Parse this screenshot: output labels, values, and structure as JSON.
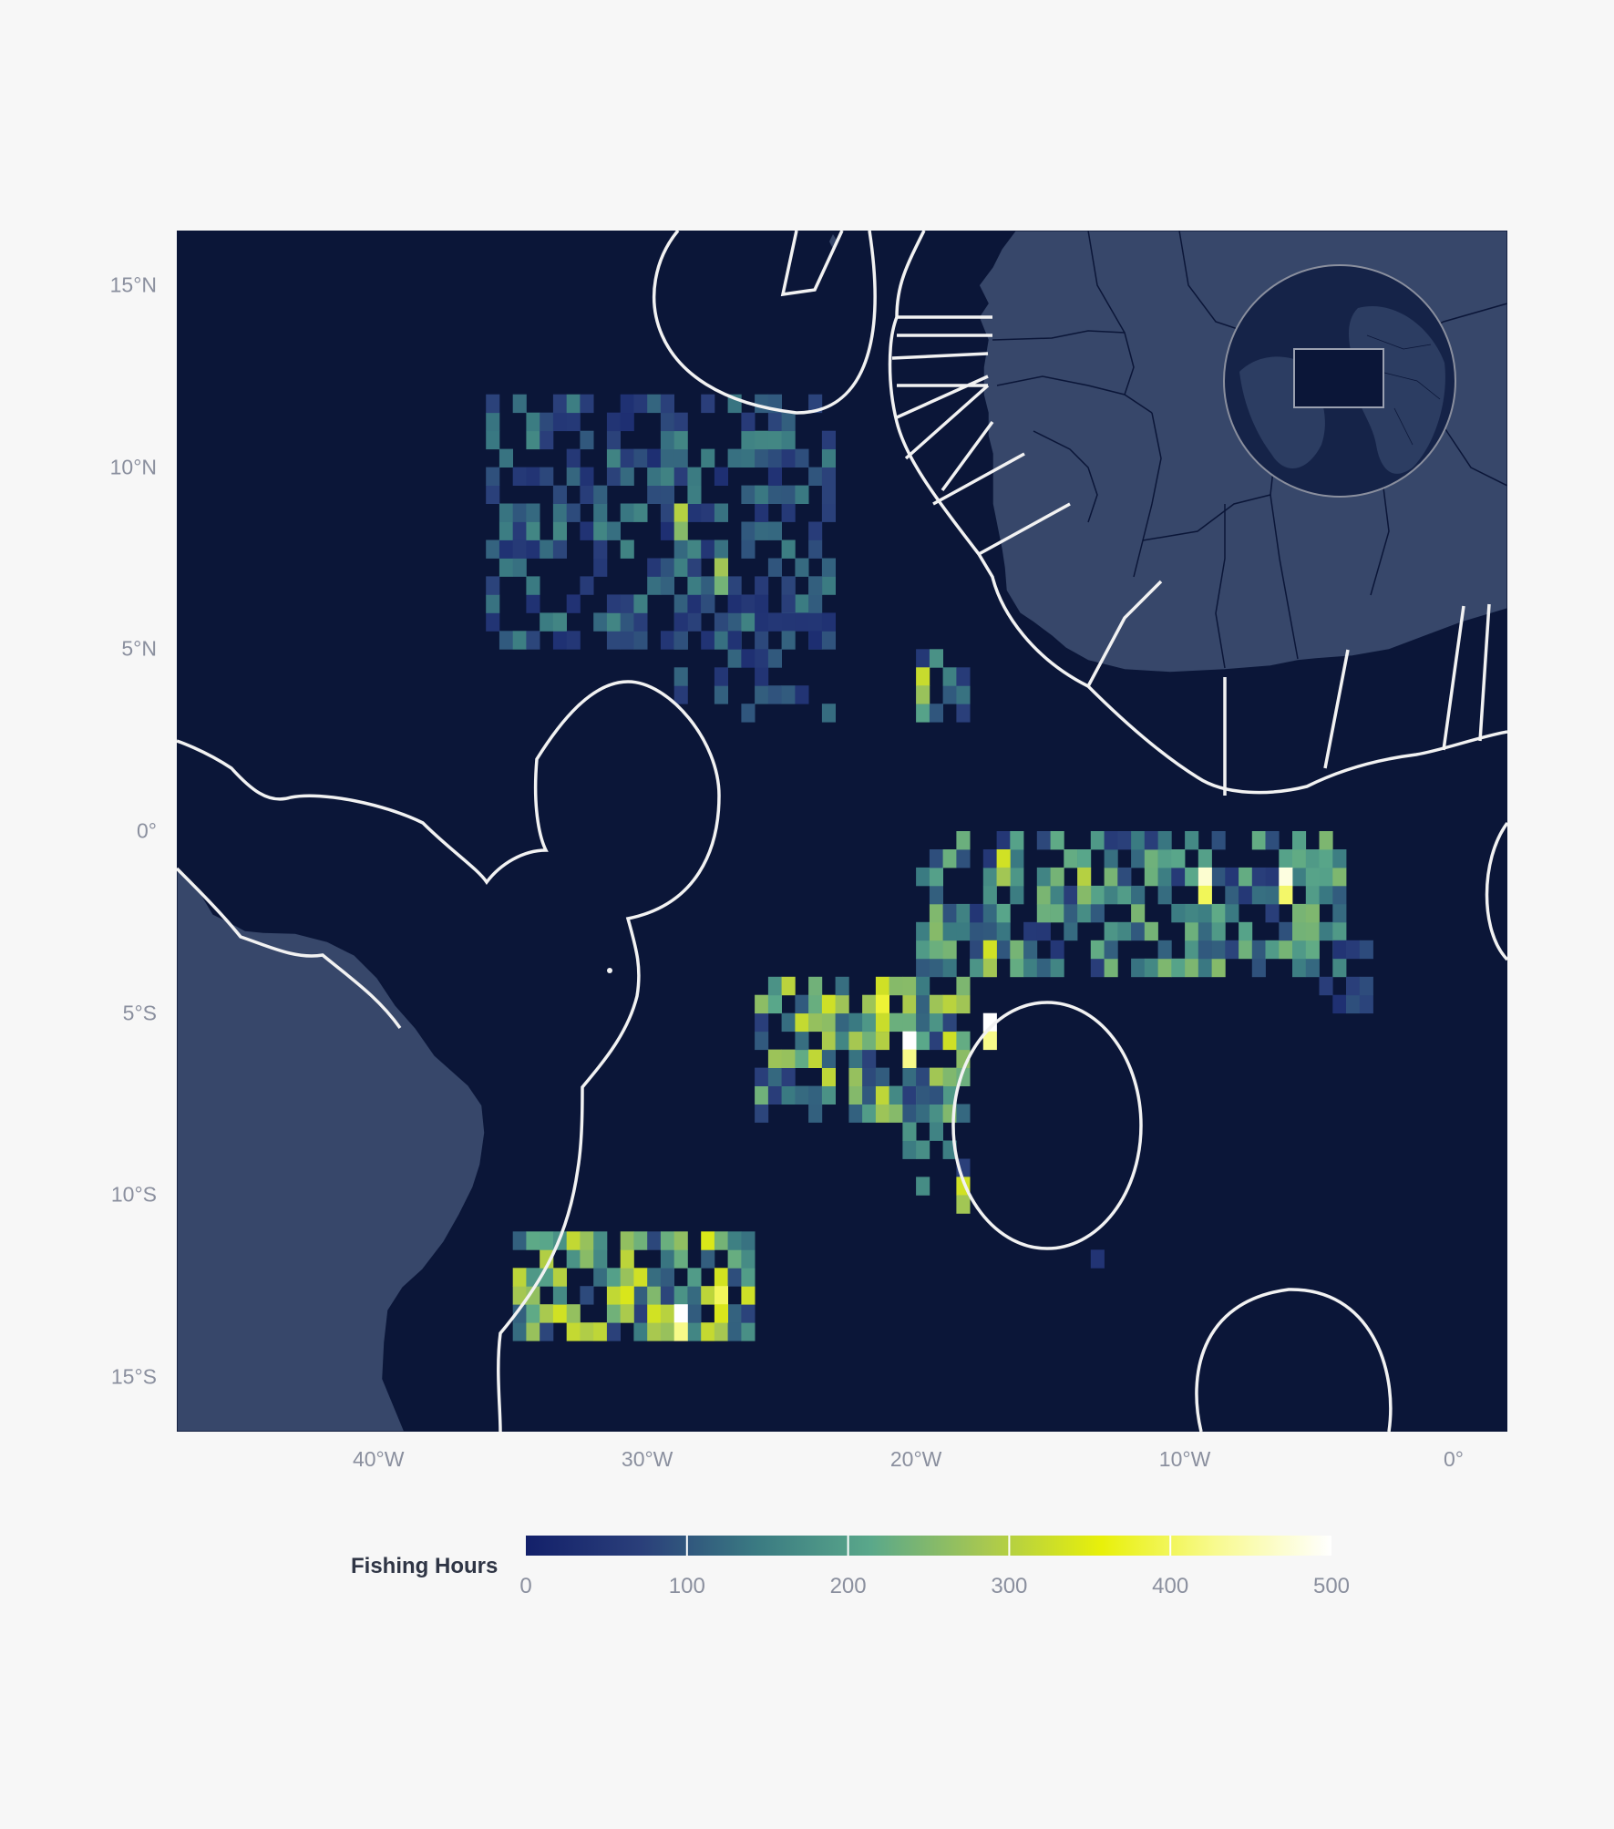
{
  "map": {
    "extent": {
      "lon_min": -47.5,
      "lon_max": 2,
      "lat_min": -16.5,
      "lat_max": 16.5
    },
    "colors": {
      "ocean": "#0b1638",
      "land": "#37476a",
      "borders": "#0b1638",
      "eez_lines": "#f2f2f2",
      "background": "#f7f7f7"
    },
    "lat_ticks": [
      {
        "value": 15,
        "label": "15°N"
      },
      {
        "value": 10,
        "label": "10°N"
      },
      {
        "value": 5,
        "label": "5°N"
      },
      {
        "value": 0,
        "label": "0°"
      },
      {
        "value": -5,
        "label": "5°S"
      },
      {
        "value": -10,
        "label": "10°S"
      },
      {
        "value": -15,
        "label": "15°S"
      }
    ],
    "lon_ticks": [
      {
        "value": -40,
        "label": "40°W"
      },
      {
        "value": -30,
        "label": "30°W"
      },
      {
        "value": -20,
        "label": "20°W"
      },
      {
        "value": -10,
        "label": "10°W"
      },
      {
        "value": 0,
        "label": "0°"
      }
    ],
    "inset": {
      "icon": "globe-locator",
      "box_lon": [
        -47.5,
        2
      ],
      "box_lat": [
        -16.5,
        16.5
      ]
    }
  },
  "legend": {
    "title": "Fishing Hours",
    "min": 0,
    "max": 500,
    "ticks": [
      {
        "value": 0,
        "label": "0"
      },
      {
        "value": 100,
        "label": "100"
      },
      {
        "value": 200,
        "label": "200"
      },
      {
        "value": 300,
        "label": "300"
      },
      {
        "value": 400,
        "label": "400"
      },
      {
        "value": 500,
        "label": "500"
      }
    ],
    "colormap": [
      "#13206a",
      "#2a3f7a",
      "#3a7a82",
      "#5aa88a",
      "#a8c850",
      "#e8f00a",
      "#f8fa90",
      "#ffffff"
    ]
  },
  "fishing_regions": [
    {
      "lon_min": -36,
      "lon_max": -23,
      "lat_min": 5,
      "lat_max": 12,
      "density": 0.55,
      "intensity": 110,
      "seed": 11
    },
    {
      "lon_min": -29,
      "lon_max": -23,
      "lat_min": 3,
      "lat_max": 7,
      "density": 0.35,
      "intensity": 90,
      "seed": 12
    },
    {
      "lon_min": -20,
      "lon_max": -18,
      "lat_min": 3,
      "lat_max": 5,
      "density": 0.6,
      "intensity": 150,
      "seed": 13
    },
    {
      "lon_min": -20,
      "lon_max": -4,
      "lat_min": -4,
      "lat_max": 0,
      "density": 0.65,
      "intensity": 170,
      "seed": 21
    },
    {
      "lon_min": -26,
      "lon_max": -18,
      "lat_min": -8,
      "lat_max": -4,
      "density": 0.7,
      "intensity": 220,
      "seed": 22
    },
    {
      "lon_min": -21,
      "lon_max": -18,
      "lat_min": -10,
      "lat_max": -7,
      "density": 0.4,
      "intensity": 140,
      "seed": 23
    },
    {
      "lon_min": -35,
      "lon_max": -26,
      "lat_min": -14,
      "lat_max": -11,
      "density": 0.75,
      "intensity": 230,
      "seed": 31
    },
    {
      "lon_min": -5,
      "lon_max": -3,
      "lat_min": -5,
      "lat_max": -3,
      "density": 0.6,
      "intensity": 70,
      "seed": 41
    },
    {
      "lon_min": -14,
      "lon_max": -13,
      "lat_min": -13,
      "lat_max": -11,
      "density": 0.5,
      "intensity": 40,
      "seed": 42
    }
  ],
  "hotspots": [
    {
      "lon": -16.8,
      "lat": -0.8,
      "hours": 330
    },
    {
      "lon": -13.8,
      "lat": -1.2,
      "hours": 300
    },
    {
      "lon": -9.2,
      "lat": -1.4,
      "hours": 470
    },
    {
      "lon": -6.3,
      "lat": -1.4,
      "hours": 480
    },
    {
      "lon": -17.4,
      "lat": -3.5,
      "hours": 330
    },
    {
      "lon": -21.2,
      "lat": -4.8,
      "hours": 380
    },
    {
      "lon": -20.2,
      "lat": -5.7,
      "hours": 500
    },
    {
      "lon": -17.3,
      "lat": -5.1,
      "hours": 500
    },
    {
      "lon": -18.3,
      "lat": -10.0,
      "hours": 330
    },
    {
      "lon": -27.3,
      "lat": -12.8,
      "hours": 400
    },
    {
      "lon": -29.0,
      "lat": -13.4,
      "hours": 500
    },
    {
      "lon": -30.7,
      "lat": -13.0,
      "hours": 340
    },
    {
      "lon": -19.8,
      "lat": 4.3,
      "hours": 320
    },
    {
      "lon": -28.8,
      "lat": 8.7,
      "hours": 300
    },
    {
      "lon": -27.4,
      "lat": 7.3,
      "hours": 280
    }
  ]
}
